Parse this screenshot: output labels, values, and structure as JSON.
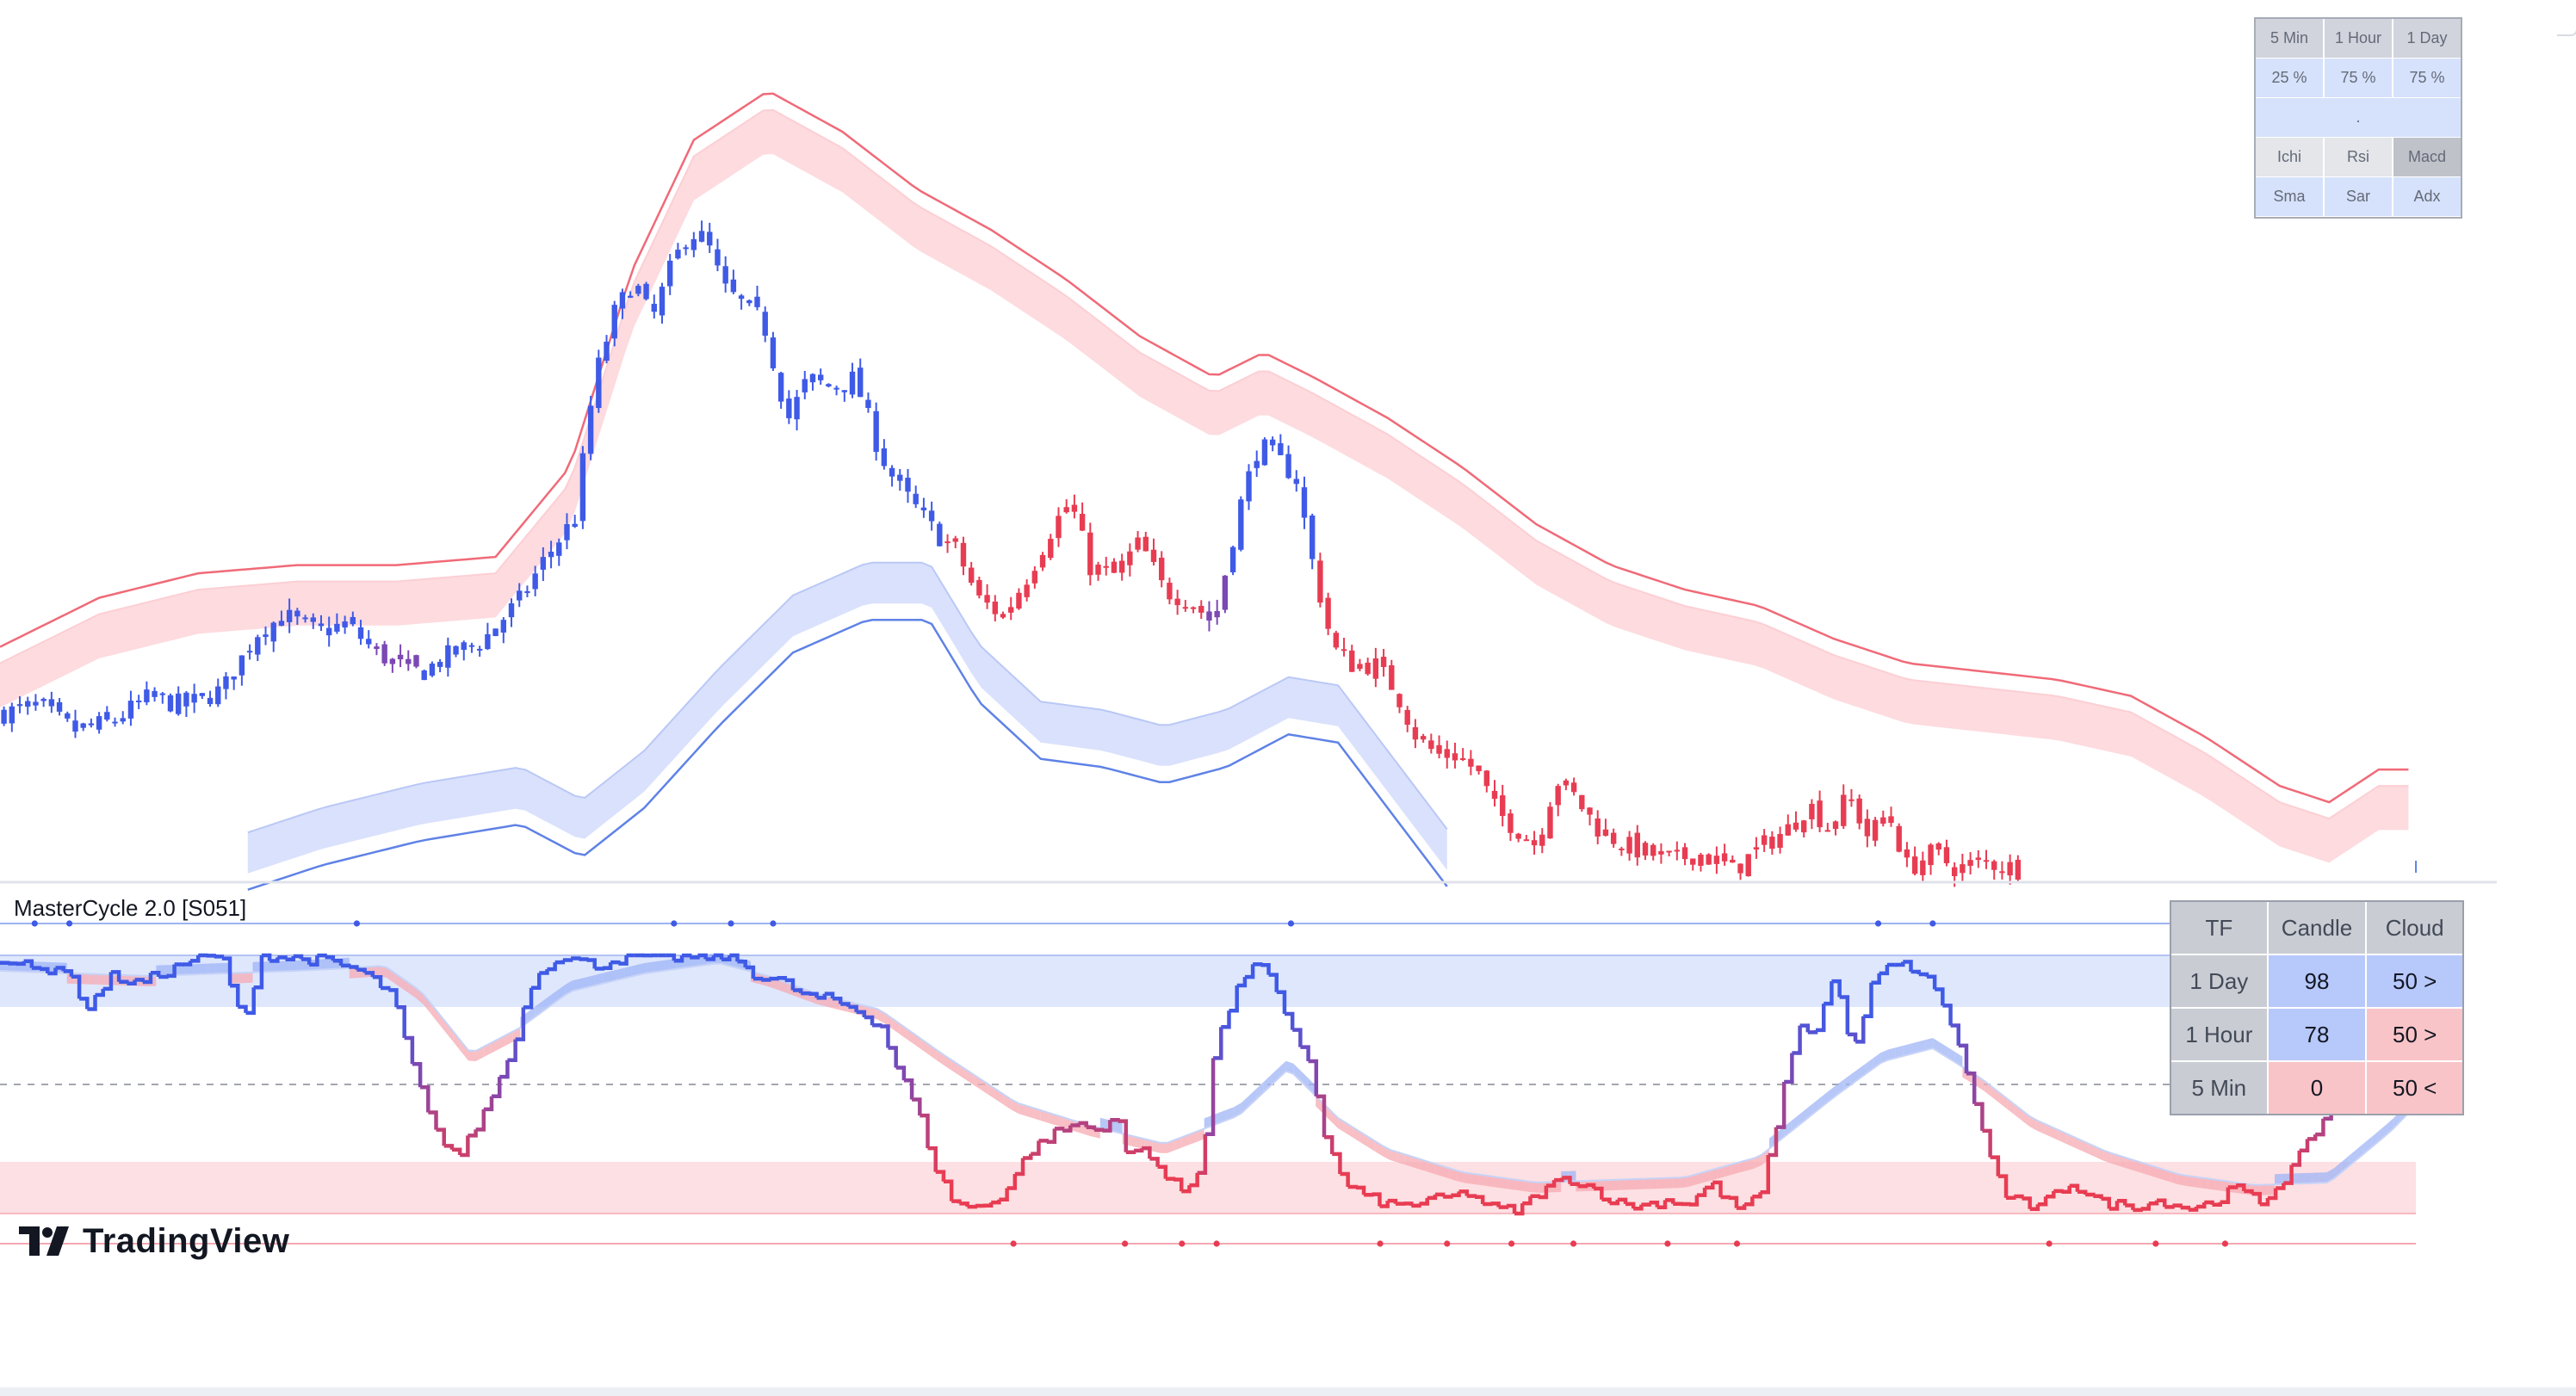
{
  "indicator_title": "MasterCycle 2.0 [S051]",
  "brand": {
    "name": "TradingView",
    "logo_icon": "tradingview-logo-icon"
  },
  "colors": {
    "bull": "#3f5ae6",
    "bear": "#e83c52",
    "mid": "#7b48b4",
    "upper_band_fill": "#fccfd4",
    "upper_band_line": "#f06a78",
    "lower_band_fill": "#d3dcfb",
    "lower_band_line": "#5f82e6",
    "high_zone": "#dfe7fd",
    "low_zone": "#fde0e3"
  },
  "indicator_grid": {
    "timeframes": [
      "5 Min",
      "1 Hour",
      "1 Day"
    ],
    "percents": [
      "25 %",
      "75 %",
      "75 %"
    ],
    "separator": ".",
    "indicators_row1": [
      "Ichi",
      "Rsi",
      "Macd"
    ],
    "indicators_row2": [
      "Sma",
      "Sar",
      "Adx"
    ]
  },
  "tf_table": {
    "headers": [
      "TF",
      "Candle",
      "Cloud"
    ],
    "rows": [
      {
        "tf": "1 Day",
        "candle": "98",
        "cloud": "50 >"
      },
      {
        "tf": "1 Hour",
        "candle": "78",
        "cloud": "50 >"
      },
      {
        "tf": "5 Min",
        "candle": "0",
        "cloud": "50 <"
      }
    ]
  },
  "chart_data": [
    {
      "type": "candlestick",
      "title": "",
      "xlabel": "",
      "ylabel": "",
      "x_range": [
        0,
        1000
      ],
      "ylim": [
        0,
        100
      ],
      "grid": false,
      "bands": [
        "upper",
        "lower"
      ],
      "close_series": [
        [
          0,
          19
        ],
        [
          15,
          20
        ],
        [
          30,
          17
        ],
        [
          45,
          18
        ],
        [
          60,
          21
        ],
        [
          75,
          20
        ],
        [
          90,
          22
        ],
        [
          104,
          29
        ],
        [
          115,
          31
        ],
        [
          128,
          29
        ],
        [
          140,
          30
        ],
        [
          150,
          27
        ],
        [
          160,
          25
        ],
        [
          170,
          24
        ],
        [
          180,
          26
        ],
        [
          195,
          28
        ],
        [
          210,
          33
        ],
        [
          220,
          38
        ],
        [
          232,
          43
        ],
        [
          240,
          60
        ],
        [
          248,
          68
        ],
        [
          256,
          72
        ],
        [
          263,
          67
        ],
        [
          270,
          73
        ],
        [
          278,
          78
        ],
        [
          285,
          77
        ],
        [
          292,
          71
        ],
        [
          300,
          69
        ],
        [
          308,
          67
        ],
        [
          318,
          55
        ],
        [
          326,
          60
        ],
        [
          335,
          59
        ],
        [
          345,
          60
        ],
        [
          355,
          51
        ],
        [
          362,
          47
        ],
        [
          370,
          44
        ],
        [
          378,
          41
        ],
        [
          386,
          39
        ],
        [
          395,
          33
        ],
        [
          405,
          31
        ],
        [
          415,
          36
        ],
        [
          425,
          42
        ],
        [
          432,
          45
        ],
        [
          440,
          37
        ],
        [
          450,
          36
        ],
        [
          460,
          40
        ],
        [
          470,
          34
        ],
        [
          480,
          33
        ],
        [
          490,
          30
        ],
        [
          500,
          44
        ],
        [
          508,
          52
        ],
        [
          516,
          50
        ],
        [
          523,
          48
        ],
        [
          530,
          37
        ],
        [
          538,
          27
        ],
        [
          546,
          25
        ],
        [
          555,
          25
        ],
        [
          563,
          22
        ],
        [
          572,
          16
        ],
        [
          580,
          14
        ],
        [
          588,
          14
        ],
        [
          596,
          12
        ],
        [
          604,
          7
        ],
        [
          612,
          5
        ],
        [
          620,
          3
        ],
        [
          628,
          11
        ],
        [
          635,
          9
        ],
        [
          645,
          5
        ],
        [
          655,
          3
        ],
        [
          665,
          2
        ],
        [
          675,
          1
        ],
        [
          685,
          2
        ],
        [
          700,
          0
        ],
        [
          712,
          3
        ],
        [
          722,
          5
        ],
        [
          730,
          8
        ],
        [
          738,
          5
        ],
        [
          746,
          9
        ],
        [
          754,
          4
        ],
        [
          762,
          7
        ],
        [
          770,
          0
        ],
        [
          780,
          2
        ],
        [
          790,
          0
        ],
        [
          800,
          1
        ],
        [
          815,
          0
        ]
      ],
      "upper_band": [
        [
          0,
          24
        ],
        [
          40,
          30
        ],
        [
          80,
          33
        ],
        [
          120,
          34
        ],
        [
          160,
          34
        ],
        [
          200,
          35
        ],
        [
          230,
          46
        ],
        [
          255,
          70
        ],
        [
          280,
          86
        ],
        [
          310,
          92
        ],
        [
          340,
          87
        ],
        [
          370,
          80
        ],
        [
          400,
          75
        ],
        [
          430,
          69
        ],
        [
          460,
          62
        ],
        [
          490,
          57
        ],
        [
          510,
          60
        ],
        [
          530,
          57
        ],
        [
          560,
          52
        ],
        [
          590,
          46
        ],
        [
          620,
          39
        ],
        [
          650,
          34
        ],
        [
          680,
          31
        ],
        [
          710,
          29
        ],
        [
          740,
          25
        ],
        [
          770,
          22
        ],
        [
          800,
          21
        ],
        [
          830,
          20
        ],
        [
          860,
          18
        ],
        [
          890,
          13
        ],
        [
          920,
          7
        ],
        [
          940,
          5
        ],
        [
          960,
          9
        ],
        [
          975,
          9
        ]
      ],
      "lower_band": [
        [
          100,
          0
        ],
        [
          130,
          3
        ],
        [
          170,
          6
        ],
        [
          210,
          8
        ],
        [
          235,
          4
        ],
        [
          260,
          10
        ],
        [
          290,
          20
        ],
        [
          320,
          29
        ],
        [
          350,
          33
        ],
        [
          375,
          33
        ],
        [
          395,
          23
        ],
        [
          420,
          16
        ],
        [
          445,
          15
        ],
        [
          470,
          13
        ],
        [
          495,
          15
        ],
        [
          520,
          19
        ],
        [
          540,
          18
        ],
        [
          560,
          10
        ],
        [
          585,
          0
        ]
      ]
    },
    {
      "type": "oscillator",
      "title": "MasterCycle 2.0 [S051]",
      "xlabel": "",
      "ylabel": "",
      "x_range": [
        0,
        1000
      ],
      "ylim": [
        0,
        100
      ],
      "grid": false,
      "zones": {
        "high": [
          80,
          100
        ],
        "mid": 50,
        "low": [
          0,
          20
        ]
      },
      "series": [
        {
          "values": [
            [
              0,
              99
            ],
            [
              15,
              94
            ],
            [
              25,
              96
            ],
            [
              35,
              80
            ],
            [
              45,
              92
            ],
            [
              55,
              89
            ],
            [
              70,
              95
            ],
            [
              80,
              100
            ],
            [
              90,
              98
            ],
            [
              98,
              72
            ],
            [
              105,
              100
            ],
            [
              115,
              99
            ],
            [
              130,
              98
            ],
            [
              145,
              94
            ],
            [
              158,
              85
            ],
            [
              165,
              61
            ],
            [
              175,
              32
            ],
            [
              185,
              22
            ],
            [
              195,
              39
            ],
            [
              205,
              60
            ],
            [
              215,
              91
            ],
            [
              225,
              100
            ],
            [
              240,
              96
            ],
            [
              255,
              100
            ],
            [
              275,
              99
            ],
            [
              295,
              100
            ],
            [
              305,
              92
            ],
            [
              315,
              90
            ],
            [
              325,
              84
            ],
            [
              335,
              83
            ],
            [
              345,
              79
            ],
            [
              355,
              73
            ],
            [
              362,
              56
            ],
            [
              370,
              40
            ],
            [
              378,
              16
            ],
            [
              385,
              4
            ],
            [
              395,
              2
            ],
            [
              405,
              8
            ],
            [
              415,
              24
            ],
            [
              425,
              31
            ],
            [
              435,
              35
            ],
            [
              442,
              32
            ],
            [
              450,
              38
            ],
            [
              455,
              22
            ],
            [
              462,
              26
            ],
            [
              470,
              14
            ],
            [
              478,
              8
            ],
            [
              485,
              20
            ],
            [
              490,
              64
            ],
            [
              497,
              82
            ],
            [
              505,
              98
            ],
            [
              512,
              92
            ],
            [
              520,
              72
            ],
            [
              528,
              60
            ],
            [
              535,
              28
            ],
            [
              542,
              12
            ],
            [
              552,
              6
            ],
            [
              562,
              3
            ],
            [
              572,
              4
            ],
            [
              582,
              6
            ],
            [
              592,
              8
            ],
            [
              602,
              2
            ],
            [
              612,
              1
            ],
            [
              622,
              9
            ],
            [
              632,
              14
            ],
            [
              642,
              10
            ],
            [
              652,
              4
            ],
            [
              662,
              3
            ],
            [
              672,
              5
            ],
            [
              682,
              4
            ],
            [
              690,
              12
            ],
            [
              700,
              2
            ],
            [
              710,
              6
            ],
            [
              718,
              40
            ],
            [
              725,
              72
            ],
            [
              732,
              70
            ],
            [
              740,
              92
            ],
            [
              748,
              62
            ],
            [
              755,
              88
            ],
            [
              762,
              96
            ],
            [
              770,
              96
            ],
            [
              778,
              90
            ],
            [
              785,
              80
            ],
            [
              795,
              50
            ],
            [
              802,
              24
            ],
            [
              810,
              6
            ],
            [
              822,
              2
            ],
            [
              835,
              12
            ],
            [
              848,
              4
            ],
            [
              860,
              3
            ],
            [
              872,
              5
            ],
            [
              882,
              2
            ],
            [
              892,
              4
            ],
            [
              902,
              10
            ],
            [
              912,
              4
            ],
            [
              922,
              14
            ],
            [
              932,
              28
            ],
            [
              942,
              44
            ],
            [
              952,
              90
            ],
            [
              962,
              99
            ],
            [
              970,
              92
            ],
            [
              975,
              88
            ]
          ]
        }
      ],
      "cloud": [
        [
          0,
          94
        ],
        [
          30,
          93
        ],
        [
          60,
          92
        ],
        [
          90,
          93
        ],
        [
          120,
          94
        ],
        [
          140,
          95
        ],
        [
          155,
          96
        ],
        [
          170,
          86
        ],
        [
          190,
          62
        ],
        [
          210,
          72
        ],
        [
          230,
          86
        ],
        [
          260,
          93
        ],
        [
          290,
          97
        ],
        [
          310,
          92
        ],
        [
          330,
          85
        ],
        [
          355,
          79
        ],
        [
          380,
          62
        ],
        [
          410,
          43
        ],
        [
          440,
          34
        ],
        [
          470,
          27
        ],
        [
          500,
          38
        ],
        [
          520,
          56
        ],
        [
          540,
          37
        ],
        [
          560,
          25
        ],
        [
          590,
          16
        ],
        [
          620,
          12
        ],
        [
          650,
          13
        ],
        [
          680,
          14
        ],
        [
          710,
          22
        ],
        [
          740,
          45
        ],
        [
          760,
          59
        ],
        [
          780,
          64
        ],
        [
          800,
          52
        ],
        [
          820,
          37
        ],
        [
          850,
          24
        ],
        [
          880,
          15
        ],
        [
          910,
          11
        ],
        [
          940,
          12
        ],
        [
          965,
          32
        ],
        [
          975,
          42
        ]
      ],
      "top_dots_x": [
        14,
        28,
        144,
        272,
        295,
        312,
        521,
        758,
        780,
        958,
        975
      ],
      "bottom_dots_x": [
        409,
        454,
        477,
        491,
        557,
        584,
        610,
        635,
        673,
        701,
        827,
        870,
        898
      ]
    }
  ]
}
